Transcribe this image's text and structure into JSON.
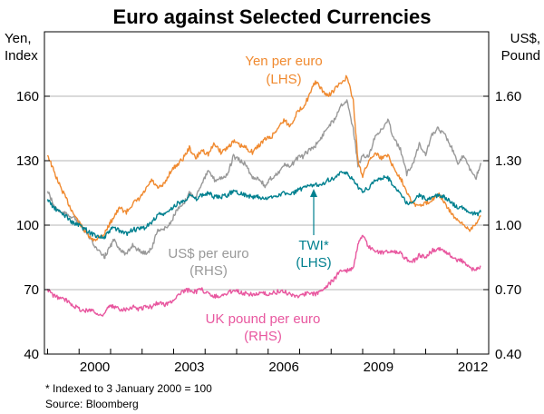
{
  "chart_data": {
    "type": "line",
    "title": "Euro against Selected Currencies",
    "left_axis": {
      "label_line1": "Yen,",
      "label_line2": "Index",
      "ylim": [
        40,
        190
      ],
      "ticks": [
        40,
        70,
        100,
        130,
        160
      ],
      "tick_labels": [
        "40",
        "70",
        "100",
        "130",
        "160"
      ]
    },
    "right_axis": {
      "label_line1": "US$,",
      "label_line2": "Pound",
      "ylim": [
        0.4,
        1.9
      ],
      "ticks": [
        0.4,
        0.7,
        1.0,
        1.3,
        1.6
      ],
      "tick_labels": [
        "0.40",
        "0.70",
        "1.00",
        "1.30",
        "1.60"
      ]
    },
    "x_axis": {
      "xlim": [
        1998.9,
        2013.0
      ],
      "ticks": [
        2000,
        2003,
        2006,
        2009,
        2012
      ],
      "tick_labels": [
        "2000",
        "2003",
        "2006",
        "2009",
        "2012"
      ]
    },
    "grid": true,
    "series": [
      {
        "name": "Yen per euro",
        "axis": "left",
        "color": "#f08a30",
        "label_line1": "Yen per euro",
        "label_line2": "(LHS)",
        "x": [
          1999.0,
          1999.2,
          1999.4,
          1999.6,
          1999.8,
          2000.0,
          2000.2,
          2000.4,
          2000.6,
          2000.8,
          2000.95,
          2001.1,
          2001.3,
          2001.5,
          2001.7,
          2001.9,
          2002.1,
          2002.3,
          2002.5,
          2002.7,
          2002.9,
          2003.1,
          2003.3,
          2003.5,
          2003.7,
          2003.9,
          2004.1,
          2004.3,
          2004.5,
          2004.7,
          2004.9,
          2005.1,
          2005.3,
          2005.5,
          2005.7,
          2005.9,
          2006.1,
          2006.3,
          2006.5,
          2006.7,
          2006.9,
          2007.1,
          2007.3,
          2007.5,
          2007.7,
          2007.9,
          2008.1,
          2008.3,
          2008.5,
          2008.7,
          2008.85,
          2009.0,
          2009.2,
          2009.4,
          2009.6,
          2009.8,
          2010.0,
          2010.2,
          2010.4,
          2010.6,
          2010.8,
          2011.0,
          2011.2,
          2011.4,
          2011.6,
          2011.8,
          2012.0,
          2012.2,
          2012.4,
          2012.6,
          2012.75
        ],
        "values": [
          133,
          125,
          118,
          112,
          106,
          101,
          97,
          93,
          94,
          96,
          100,
          104,
          108,
          106,
          110,
          112,
          116,
          121,
          117,
          119,
          125,
          128,
          131,
          136,
          131,
          135,
          133,
          138,
          134,
          136,
          139,
          137,
          136,
          134,
          137,
          140,
          141,
          145,
          149,
          146,
          152,
          155,
          160,
          167,
          163,
          160,
          163,
          166,
          169,
          158,
          130,
          123,
          130,
          134,
          131,
          133,
          126,
          122,
          116,
          110,
          109,
          110,
          112,
          115,
          110,
          106,
          102,
          100,
          98,
          101,
          104
        ]
      },
      {
        "name": "US$ per euro",
        "axis": "right",
        "color": "#999999",
        "label_line1": "US$ per euro",
        "label_line2": "(RHS)",
        "x": [
          1999.0,
          1999.2,
          1999.4,
          1999.6,
          1999.8,
          2000.0,
          2000.2,
          2000.4,
          2000.6,
          2000.8,
          2000.95,
          2001.1,
          2001.3,
          2001.5,
          2001.7,
          2001.9,
          2002.1,
          2002.3,
          2002.5,
          2002.7,
          2002.9,
          2003.1,
          2003.3,
          2003.5,
          2003.7,
          2003.9,
          2004.1,
          2004.3,
          2004.5,
          2004.7,
          2004.9,
          2005.1,
          2005.3,
          2005.5,
          2005.7,
          2005.9,
          2006.1,
          2006.3,
          2006.5,
          2006.7,
          2006.9,
          2007.1,
          2007.3,
          2007.5,
          2007.7,
          2007.9,
          2008.1,
          2008.3,
          2008.5,
          2008.7,
          2008.85,
          2009.0,
          2009.2,
          2009.4,
          2009.6,
          2009.8,
          2010.0,
          2010.2,
          2010.4,
          2010.6,
          2010.8,
          2011.0,
          2011.2,
          2011.4,
          2011.6,
          2011.8,
          2012.0,
          2012.2,
          2012.4,
          2012.6,
          2012.75
        ],
        "values": [
          1.16,
          1.09,
          1.06,
          1.05,
          1.04,
          1.01,
          0.97,
          0.93,
          0.88,
          0.85,
          0.89,
          0.93,
          0.89,
          0.86,
          0.91,
          0.88,
          0.87,
          0.89,
          0.98,
          0.98,
          1.01,
          1.07,
          1.09,
          1.15,
          1.13,
          1.2,
          1.25,
          1.21,
          1.22,
          1.23,
          1.32,
          1.3,
          1.28,
          1.22,
          1.22,
          1.18,
          1.22,
          1.24,
          1.28,
          1.27,
          1.31,
          1.32,
          1.35,
          1.37,
          1.41,
          1.46,
          1.49,
          1.56,
          1.58,
          1.45,
          1.28,
          1.32,
          1.32,
          1.42,
          1.44,
          1.49,
          1.4,
          1.35,
          1.24,
          1.29,
          1.38,
          1.33,
          1.42,
          1.45,
          1.42,
          1.37,
          1.29,
          1.32,
          1.26,
          1.22,
          1.29
        ]
      },
      {
        "name": "TWI*",
        "axis": "left",
        "color": "#00808f",
        "label_line1": "TWI*",
        "label_line2": "(LHS)",
        "x": [
          1999.0,
          1999.2,
          1999.4,
          1999.6,
          1999.8,
          2000.0,
          2000.2,
          2000.4,
          2000.6,
          2000.8,
          2000.95,
          2001.1,
          2001.3,
          2001.5,
          2001.7,
          2001.9,
          2002.1,
          2002.3,
          2002.5,
          2002.7,
          2002.9,
          2003.1,
          2003.3,
          2003.5,
          2003.7,
          2003.9,
          2004.1,
          2004.3,
          2004.5,
          2004.7,
          2004.9,
          2005.1,
          2005.3,
          2005.5,
          2005.7,
          2005.9,
          2006.1,
          2006.3,
          2006.5,
          2006.7,
          2006.9,
          2007.1,
          2007.3,
          2007.5,
          2007.7,
          2007.9,
          2008.1,
          2008.3,
          2008.5,
          2008.7,
          2008.85,
          2009.0,
          2009.2,
          2009.4,
          2009.6,
          2009.8,
          2010.0,
          2010.2,
          2010.4,
          2010.6,
          2010.8,
          2011.0,
          2011.2,
          2011.4,
          2011.6,
          2011.8,
          2012.0,
          2012.2,
          2012.4,
          2012.6,
          2012.75
        ],
        "values": [
          112,
          108,
          106,
          104,
          101,
          100,
          98,
          96,
          95,
          94,
          97,
          99,
          97,
          96,
          98,
          98,
          99,
          101,
          105,
          105,
          107,
          110,
          111,
          114,
          112,
          114,
          115,
          113,
          113,
          114,
          116,
          115,
          114,
          113,
          113,
          112,
          113,
          114,
          115,
          114,
          116,
          117,
          118,
          119,
          119,
          121,
          122,
          124,
          124,
          121,
          118,
          116,
          117,
          121,
          122,
          122,
          118,
          115,
          110,
          111,
          114,
          112,
          113,
          114,
          113,
          111,
          108,
          108,
          106,
          105,
          106
        ]
      },
      {
        "name": "UK pound per euro",
        "axis": "right",
        "color": "#e8579f",
        "label_line1": "UK pound per euro",
        "label_line2": "(RHS)",
        "x": [
          1999.0,
          1999.2,
          1999.4,
          1999.6,
          1999.8,
          2000.0,
          2000.2,
          2000.4,
          2000.6,
          2000.8,
          2000.95,
          2001.1,
          2001.3,
          2001.5,
          2001.7,
          2001.9,
          2002.1,
          2002.3,
          2002.5,
          2002.7,
          2002.9,
          2003.1,
          2003.3,
          2003.5,
          2003.7,
          2003.9,
          2004.1,
          2004.3,
          2004.5,
          2004.7,
          2004.9,
          2005.1,
          2005.3,
          2005.5,
          2005.7,
          2005.9,
          2006.1,
          2006.3,
          2006.5,
          2006.7,
          2006.9,
          2007.1,
          2007.3,
          2007.5,
          2007.7,
          2007.9,
          2008.1,
          2008.3,
          2008.5,
          2008.7,
          2008.85,
          2009.0,
          2009.2,
          2009.4,
          2009.6,
          2009.8,
          2010.0,
          2010.2,
          2010.4,
          2010.6,
          2010.8,
          2011.0,
          2011.2,
          2011.4,
          2011.6,
          2011.8,
          2012.0,
          2012.2,
          2012.4,
          2012.6,
          2012.75
        ],
        "values": [
          0.7,
          0.67,
          0.66,
          0.65,
          0.63,
          0.61,
          0.6,
          0.61,
          0.58,
          0.59,
          0.62,
          0.62,
          0.61,
          0.61,
          0.62,
          0.61,
          0.62,
          0.62,
          0.64,
          0.63,
          0.64,
          0.67,
          0.69,
          0.7,
          0.69,
          0.7,
          0.68,
          0.67,
          0.67,
          0.68,
          0.7,
          0.69,
          0.68,
          0.68,
          0.68,
          0.68,
          0.68,
          0.69,
          0.69,
          0.68,
          0.67,
          0.68,
          0.68,
          0.68,
          0.7,
          0.72,
          0.75,
          0.79,
          0.79,
          0.8,
          0.91,
          0.95,
          0.9,
          0.88,
          0.87,
          0.88,
          0.88,
          0.87,
          0.84,
          0.83,
          0.86,
          0.85,
          0.88,
          0.89,
          0.88,
          0.86,
          0.84,
          0.83,
          0.8,
          0.79,
          0.81
        ]
      }
    ],
    "footnote": "*    Indexed to 3 January 2000 = 100",
    "source": "Source: Bloomberg"
  }
}
